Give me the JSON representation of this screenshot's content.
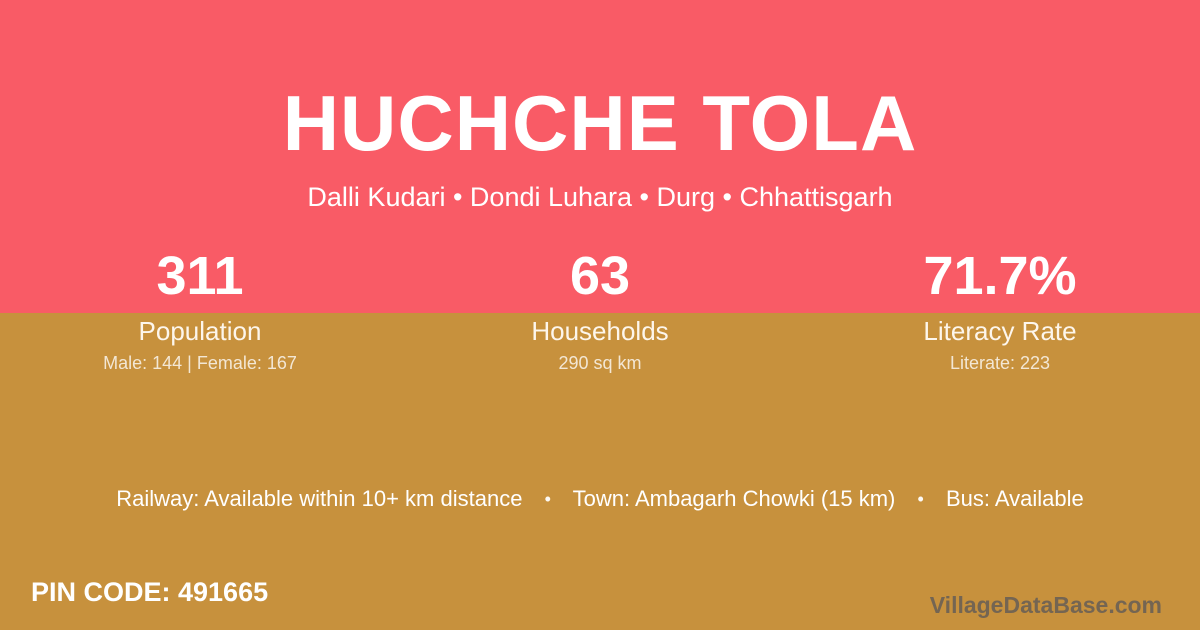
{
  "colors": {
    "top_band": "#f95b66",
    "bottom_band": "#c7913d",
    "text_primary": "#ffffff",
    "watermark_grey": "rgba(84,84,90,0.72)"
  },
  "header": {
    "title": "HUCHCHE TOLA",
    "breadcrumb": "Dalli Kudari • Dondi Luhara • Durg • Chhattisgarh"
  },
  "stats": [
    {
      "value": "311",
      "label": "Population",
      "detail": "Male: 144 | Female: 167"
    },
    {
      "value": "63",
      "label": "Households",
      "detail": "290 sq km"
    },
    {
      "value": "71.7%",
      "label": "Literacy Rate",
      "detail": "Literate: 223"
    }
  ],
  "transit": {
    "items": [
      "Railway: Available within 10+ km distance",
      "Town: Ambagarh Chowki (15 km)",
      "Bus: Available"
    ],
    "separator": "•"
  },
  "footer": {
    "pin_code": "PIN CODE: 491665",
    "watermark": "VillageDataBase.com"
  }
}
